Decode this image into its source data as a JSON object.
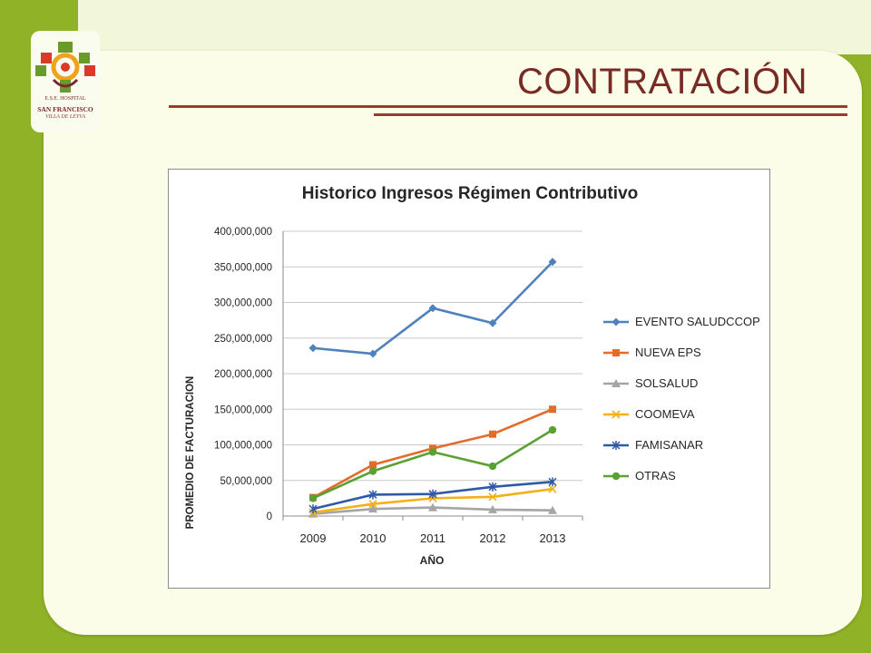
{
  "slide": {
    "title": "CONTRATACIÓN",
    "logo": {
      "icon": "hospital-emblem-icon",
      "line1": "E.S.E. HOSPITAL",
      "line2": "SAN FRANCISCO",
      "line3": "VILLA DE LEYVA"
    },
    "colors": {
      "background": "#8fb227",
      "panel": "#fbfde9",
      "title": "#7a2a24",
      "rule": "#9c3b2a"
    }
  },
  "chart_data": {
    "type": "line",
    "title": "Historico Ingresos Régimen Contributivo",
    "xlabel": "AÑO",
    "ylabel": "PROMEDIO DE FACTURACION",
    "categories": [
      "2009",
      "2010",
      "2011",
      "2012",
      "2013"
    ],
    "ylim": [
      0,
      400000000
    ],
    "yticks": [
      0,
      50000000,
      100000000,
      150000000,
      200000000,
      250000000,
      300000000,
      350000000,
      400000000
    ],
    "ytick_labels": [
      "0",
      "50,000,000",
      "100,000,000",
      "150,000,000",
      "200,000,000",
      "250,000,000",
      "300,000,000",
      "350,000,000",
      "400,000,000"
    ],
    "grid": true,
    "legend_position": "right",
    "series": [
      {
        "name": "EVENTO SALUDCCOP",
        "color": "#4f81bd",
        "marker": "diamond",
        "values": [
          236000000,
          228000000,
          292000000,
          271000000,
          357000000
        ]
      },
      {
        "name": "NUEVA EPS",
        "color": "#e46c2a",
        "marker": "square",
        "values": [
          26000000,
          72000000,
          95000000,
          115000000,
          150000000
        ]
      },
      {
        "name": "SOLSALUD",
        "color": "#a5a5a5",
        "marker": "triangle",
        "values": [
          3000000,
          10000000,
          12000000,
          9000000,
          8000000
        ]
      },
      {
        "name": "COOMEVA",
        "color": "#f4b019",
        "marker": "x",
        "values": [
          5000000,
          17000000,
          25000000,
          27000000,
          38000000
        ]
      },
      {
        "name": "FAMISANAR",
        "color": "#2e5aa8",
        "marker": "star",
        "values": [
          10000000,
          30000000,
          31000000,
          41000000,
          48000000
        ]
      },
      {
        "name": "OTRAS",
        "color": "#5aa133",
        "marker": "circle",
        "values": [
          25000000,
          63000000,
          90000000,
          70000000,
          121000000
        ]
      }
    ]
  }
}
